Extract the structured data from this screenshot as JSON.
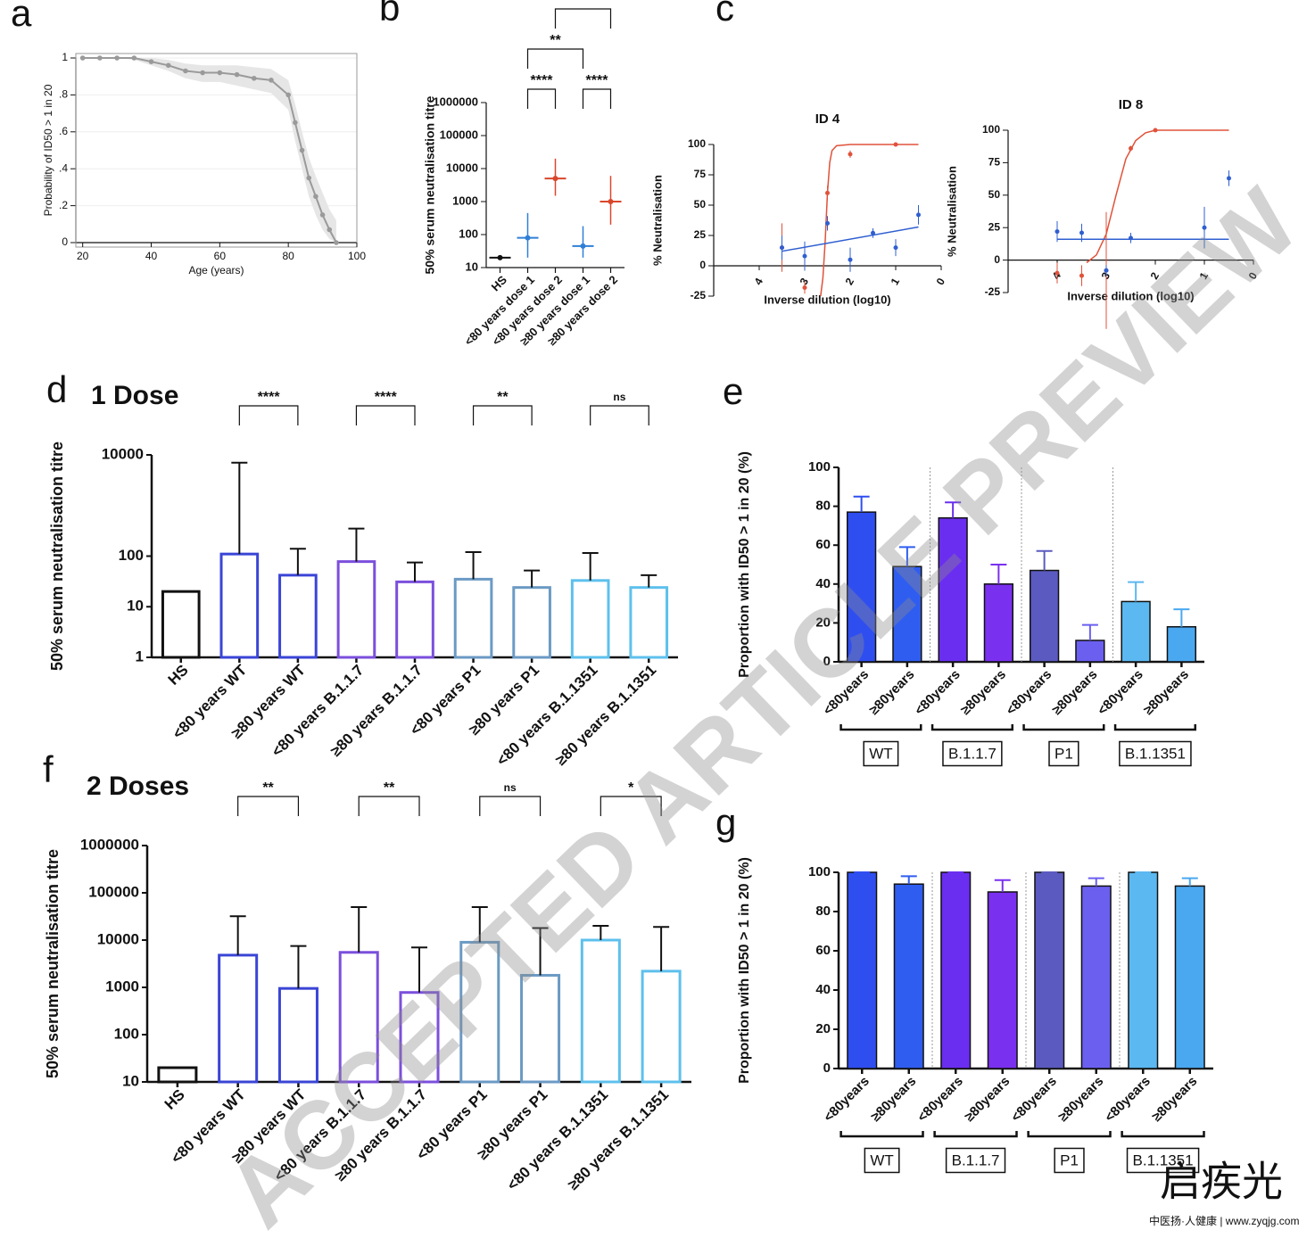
{
  "chart_data": [
    {
      "type": "line",
      "panel": "a",
      "xlabel": "Age (years)",
      "ylabel": "Probability of ID50 > 1 in 20",
      "x": [
        20,
        25,
        30,
        35,
        40,
        45,
        50,
        55,
        60,
        65,
        70,
        75,
        80,
        82,
        84,
        86,
        88,
        90,
        92,
        94
      ],
      "values": [
        1,
        1,
        1,
        1,
        0.98,
        0.96,
        0.93,
        0.92,
        0.92,
        0.91,
        0.89,
        0.88,
        0.8,
        0.65,
        0.5,
        0.35,
        0.25,
        0.15,
        0.07,
        0
      ],
      "lower": [
        1,
        1,
        1,
        0.99,
        0.96,
        0.93,
        0.89,
        0.87,
        0.87,
        0.85,
        0.83,
        0.81,
        0.72,
        0.55,
        0.4,
        0.25,
        0.15,
        0.07,
        0.02,
        0
      ],
      "upper": [
        1,
        1,
        1,
        1,
        1,
        0.99,
        0.97,
        0.96,
        0.96,
        0.96,
        0.95,
        0.94,
        0.88,
        0.75,
        0.6,
        0.46,
        0.36,
        0.27,
        0.18,
        0.12
      ],
      "color": "#9a9a9a",
      "band_color": "#e6e6e6",
      "grid": true,
      "xlim": [
        18,
        100
      ],
      "xticks": [
        20,
        40,
        60,
        80,
        100
      ],
      "ylim": [
        0,
        1
      ],
      "yticks": [
        0,
        {
          "value": 0.2,
          "label": ".2"
        },
        {
          "value": 0.4,
          "label": ".4"
        },
        {
          "value": 0.6,
          "label": ".6"
        },
        {
          "value": 0.8,
          "label": ".8"
        },
        1
      ]
    },
    {
      "type": "dot",
      "panel": "b",
      "ylabel": "50% serum neutralisation titre",
      "ylog": true,
      "categories": [
        "HS",
        "<80 years dose 1",
        "<80 years dose 2",
        "≥80 years dose 1",
        "≥80 years dose 2"
      ],
      "values": [
        20,
        80,
        5000,
        45,
        1000
      ],
      "lower": [
        20,
        20,
        1500,
        20,
        200
      ],
      "upper": [
        20,
        450,
        20000,
        180,
        6000
      ],
      "colors": [
        "#111111",
        "#2f7fd6",
        "#d9462b",
        "#2f7fd6",
        "#d9462b"
      ],
      "ylim": [
        10,
        1000000
      ],
      "yticks": [
        10,
        100,
        1000,
        10000,
        100000,
        1000000
      ],
      "annotations": [
        {
          "label": "****",
          "between": [
            "<80 years dose 1",
            "<80 years dose 2"
          ]
        },
        {
          "label": "****",
          "between": [
            "≥80 years dose 1",
            "≥80 years dose 2"
          ]
        },
        {
          "label": "**",
          "between": [
            "<80 years dose 1",
            "≥80 years dose 1"
          ]
        },
        {
          "between": [
            "<80 years dose 2",
            "≥80 years dose 2"
          ]
        }
      ]
    },
    {
      "type": "curve",
      "panel": "c",
      "title": "ID 4",
      "xlabel": "Inverse dilution (log10)",
      "ylabel": "% Neutralisation",
      "xlim": [
        5,
        0
      ],
      "xticks": [
        4,
        3,
        2,
        1,
        0
      ],
      "ylim": [
        -25,
        100
      ],
      "yticks": [
        -25,
        0,
        25,
        50,
        75,
        100
      ],
      "series": [
        {
          "color": "#e0523a",
          "style": "line",
          "x": [
            2.65,
            2.6,
            2.55,
            2.5,
            2.45,
            2.4,
            2.3,
            2.0,
            1.5,
            0.5
          ],
          "values": [
            -25,
            -10,
            20,
            60,
            85,
            95,
            99,
            100,
            100,
            100
          ]
        },
        {
          "color": "#2f5fd0",
          "style": "line",
          "x": [
            3.5,
            0.5
          ],
          "values": [
            12,
            32
          ]
        },
        {
          "color": "#e0523a",
          "style": "points",
          "x": [
            3.5,
            3.0,
            2.5,
            2.0,
            1.0
          ],
          "values": [
            15,
            -18,
            60,
            92,
            100
          ],
          "errors": [
            20,
            5,
            6,
            3,
            1
          ]
        },
        {
          "color": "#2f5fd0",
          "style": "points",
          "x": [
            3.5,
            3.0,
            2.5,
            2.0,
            1.5,
            1.0,
            0.5
          ],
          "values": [
            15,
            8,
            35,
            5,
            27,
            15,
            42
          ],
          "errors": [
            10,
            12,
            6,
            10,
            4,
            7,
            8
          ]
        }
      ]
    },
    {
      "type": "curve",
      "panel": null,
      "title": "ID 8",
      "xlabel": "Inverse dilution (log10)",
      "ylabel": "% Neutralisation",
      "xlim": [
        5,
        0
      ],
      "xticks": [
        4,
        3,
        2,
        1,
        0
      ],
      "ylim": [
        -25,
        100
      ],
      "yticks": [
        -25,
        0,
        25,
        50,
        75,
        100
      ],
      "series": [
        {
          "color": "#e0523a",
          "style": "line",
          "x": [
            3.4,
            3.2,
            3.0,
            2.8,
            2.6,
            2.4,
            2.2,
            2.0,
            1.5,
            0.5
          ],
          "values": [
            -2,
            4,
            20,
            50,
            78,
            92,
            98,
            100,
            100,
            100
          ]
        },
        {
          "color": "#2f5fd0",
          "style": "line",
          "x": [
            4.0,
            0.5
          ],
          "values": [
            16,
            16
          ]
        },
        {
          "color": "#e0523a",
          "style": "points",
          "x": [
            4.0,
            3.5,
            3.0,
            2.5,
            2.0
          ],
          "values": [
            -10,
            -12,
            -8,
            86,
            100
          ],
          "errors": [
            8,
            8,
            45,
            2,
            1
          ]
        },
        {
          "color": "#2f5fd0",
          "style": "points",
          "x": [
            4.0,
            3.5,
            3.0,
            2.5,
            1.0,
            0.5
          ],
          "values": [
            22,
            21,
            -8,
            17,
            25,
            63
          ],
          "errors": [
            8,
            7,
            4,
            4,
            16,
            6
          ]
        }
      ]
    },
    {
      "type": "bar",
      "panel": "d",
      "title": "1 Dose",
      "ylabel": "50% serum neutralisation titre",
      "ylog": true,
      "filled": false,
      "categories": [
        "HS",
        "<80 years WT",
        "≥80 years WT",
        "<80 years B.1.1.7",
        "≥80 years B.1.1.7",
        "<80 years P1",
        "≥80 years P1",
        "<80 years B.1.1351",
        "≥80 years B.1.1351"
      ],
      "values": [
        20,
        110,
        42,
        78,
        31,
        35,
        24,
        33,
        24
      ],
      "upper": [
        null,
        7000,
        140,
        350,
        75,
        120,
        52,
        115,
        42
      ],
      "colors": [
        "#111111",
        "#3a45d6",
        "#3a45d6",
        "#7b4fdc",
        "#7b4fdc",
        "#6b9ac4",
        "#6b9ac4",
        "#5ec0ec",
        "#5ec0ec"
      ],
      "ylim": [
        1,
        10000
      ],
      "yticks": [
        1,
        10,
        100,
        10000
      ],
      "annotations": [
        {
          "label": "****",
          "between": [
            "<80 years WT",
            "≥80 years WT"
          ]
        },
        {
          "label": "****",
          "between": [
            "<80 years B.1.1.7",
            "≥80 years B.1.1.7"
          ]
        },
        {
          "label": "**",
          "between": [
            "<80 years P1",
            "≥80 years P1"
          ]
        },
        {
          "label": "ns",
          "between": [
            "<80 years B.1.1351",
            "≥80 years B.1.1351"
          ]
        }
      ]
    },
    {
      "type": "bar",
      "panel": "e",
      "ylabel": "Proportion with ID50 > 1 in 20 (%)",
      "filled": true,
      "categories": [
        "<80years",
        "≥80years",
        "<80years",
        "≥80years",
        "<80years",
        "≥80years",
        "<80years",
        "≥80years"
      ],
      "values": [
        77,
        49,
        74,
        40,
        47,
        11,
        31,
        18
      ],
      "upper": [
        85,
        59,
        82,
        50,
        57,
        19,
        41,
        27
      ],
      "colors": [
        "#2f4ef0",
        "#2f5df0",
        "#6a2ef0",
        "#7a30ef",
        "#5b5ac0",
        "#6b5ff0",
        "#5bb8f0",
        "#4aa8f0"
      ],
      "groups": [
        "WT",
        "B.1.1.7",
        "P1",
        "B.1.1351"
      ],
      "ylim": [
        0,
        100
      ],
      "yticks": [
        0,
        20,
        40,
        60,
        80,
        100
      ]
    },
    {
      "type": "bar",
      "panel": "f",
      "title": "2 Doses",
      "ylabel": "50% serum neutralisation titre",
      "ylog": true,
      "filled": false,
      "categories": [
        "HS",
        "<80 years WT",
        "≥80 years WT",
        "<80 years B.1.1.7",
        "≥80 years B.1.1.7",
        "<80 years P1",
        "≥80 years P1",
        "<80 years B.1.1351",
        "≥80 years B.1.1351"
      ],
      "values": [
        20,
        4800,
        950,
        5500,
        780,
        9000,
        1800,
        10000,
        2200
      ],
      "upper": [
        null,
        32000,
        7500,
        50000,
        7000,
        50000,
        18000,
        20000,
        19000
      ],
      "colors": [
        "#111111",
        "#3a45d6",
        "#3a45d6",
        "#7b4fdc",
        "#7b4fdc",
        "#6b9ac4",
        "#6b9ac4",
        "#5ec0ec",
        "#5ec0ec"
      ],
      "ylim": [
        10,
        1000000
      ],
      "yticks": [
        10,
        100,
        1000,
        10000,
        100000,
        1000000
      ],
      "annotations": [
        {
          "label": "**",
          "between": [
            "<80 years WT",
            "≥80 years WT"
          ]
        },
        {
          "label": "**",
          "between": [
            "<80 years B.1.1.7",
            "≥80 years B.1.1.7"
          ]
        },
        {
          "label": "ns",
          "between": [
            "<80 years P1",
            "≥80 years P1"
          ]
        },
        {
          "label": "*",
          "between": [
            "<80 years B.1.1351",
            "≥80 years B.1.1351"
          ]
        }
      ]
    },
    {
      "type": "bar",
      "panel": "g",
      "ylabel": "Proportion with ID50 > 1 in 20 (%)",
      "filled": true,
      "categories": [
        "<80years",
        "≥80years",
        "<80years",
        "≥80years",
        "<80years",
        "≥80years",
        "<80years",
        "≥80years"
      ],
      "values": [
        100,
        94,
        100,
        90,
        100,
        93,
        100,
        93
      ],
      "upper": [
        100,
        98,
        100,
        96,
        100,
        97,
        100,
        97
      ],
      "colors": [
        "#2f4ef0",
        "#2f5df0",
        "#6a2ef0",
        "#7a30ef",
        "#5b5ac0",
        "#6b5ff0",
        "#5bb8f0",
        "#4aa8f0"
      ],
      "groups": [
        "WT",
        "B.1.1.7",
        "P1",
        "B.1.1351"
      ],
      "ylim": [
        0,
        100
      ],
      "yticks": [
        0,
        20,
        40,
        60,
        80,
        100
      ]
    }
  ],
  "watermark": "ACCEPTED ARTICLE PREVIEW",
  "logo": {
    "name": "启疾光",
    "tagline": "中医扬·人健康 | www.zyqjg.com"
  }
}
